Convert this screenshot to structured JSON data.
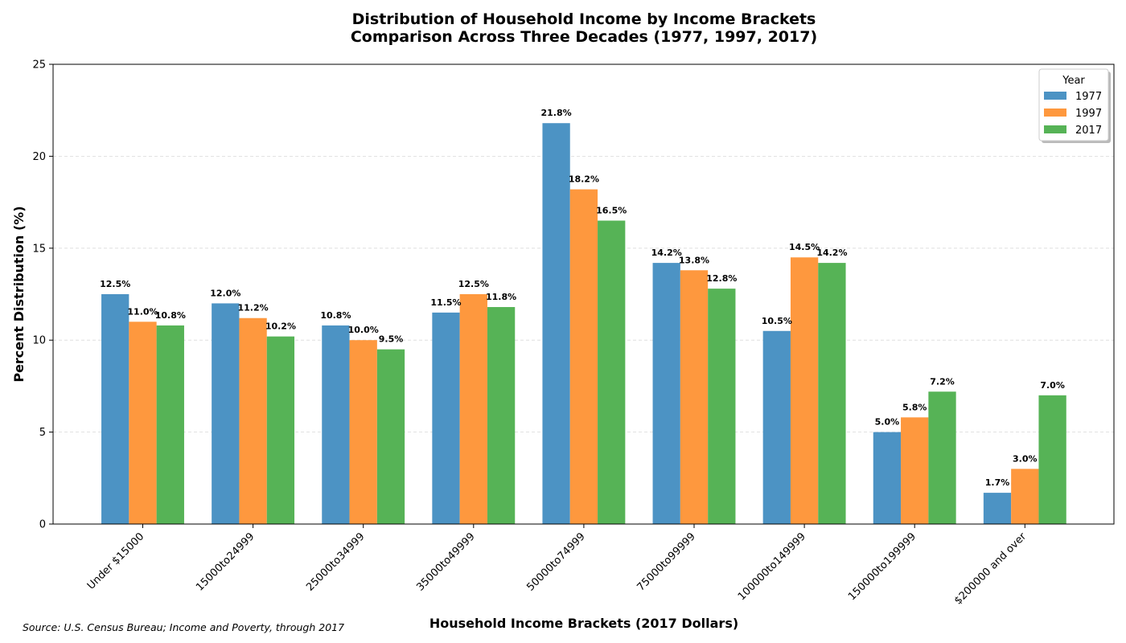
{
  "chart_data": {
    "type": "bar",
    "title": "Distribution of Household Income by Income Brackets",
    "subtitle": "Comparison Across Three Decades (1977, 1997, 2017)",
    "xlabel": "Household Income Brackets (2017 Dollars)",
    "ylabel": "Percent Distribution (%)",
    "ylim": [
      0,
      25
    ],
    "yticks": [
      0,
      5,
      10,
      15,
      20,
      25
    ],
    "grid": "y-dashed",
    "categories": [
      "Under $15000",
      "15000to24999",
      "25000to34999",
      "35000to49999",
      "50000to74999",
      "75000to99999",
      "100000to149999",
      "150000to199999",
      "$200000 and over"
    ],
    "series": [
      {
        "name": "1977",
        "color": "#4c93c4",
        "values": [
          12.5,
          12.0,
          10.8,
          11.5,
          21.8,
          14.2,
          10.5,
          5.0,
          1.7
        ],
        "labels": [
          "12.5%",
          "12.0%",
          "10.8%",
          "11.5%",
          "21.8%",
          "14.2%",
          "10.5%",
          "5.0%",
          "1.7%"
        ]
      },
      {
        "name": "1997",
        "color": "#fe983e",
        "values": [
          11.0,
          11.2,
          10.0,
          12.5,
          18.2,
          13.8,
          14.5,
          5.8,
          3.0
        ],
        "labels": [
          "11.0%",
          "11.2%",
          "10.0%",
          "12.5%",
          "18.2%",
          "13.8%",
          "14.5%",
          "5.8%",
          "3.0%"
        ]
      },
      {
        "name": "2017",
        "color": "#56b356",
        "values": [
          10.8,
          10.2,
          9.5,
          11.8,
          16.5,
          12.8,
          14.2,
          7.2,
          7.0
        ],
        "labels": [
          "10.8%",
          "10.2%",
          "9.5%",
          "11.8%",
          "16.5%",
          "12.8%",
          "14.2%",
          "7.2%",
          "7.0%"
        ]
      }
    ],
    "legend": {
      "title": "Year",
      "placement": "top-right"
    },
    "source": "Source: U.S. Census Bureau; Income and Poverty, through 2017"
  }
}
